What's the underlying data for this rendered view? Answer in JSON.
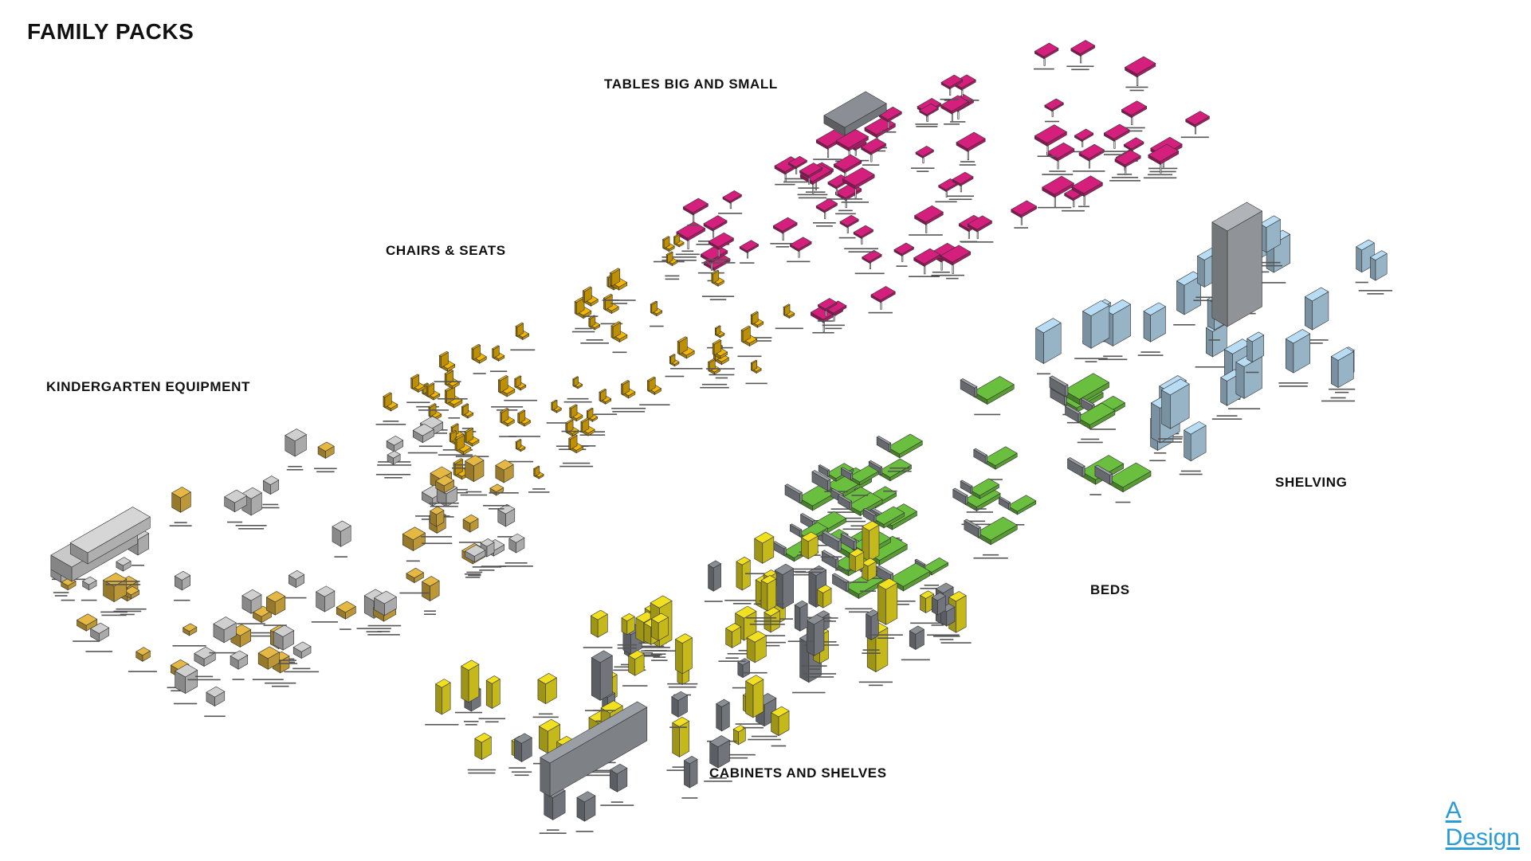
{
  "page": {
    "title": "FAMILY PACKS",
    "sections": {
      "tables": "TABLES BIG AND SMALL",
      "chairs": "CHAIRS & SEATS",
      "kindergarten": "KINDERGARTEN EQUIPMENT",
      "shelving": "SHELVING",
      "beds": "BEDS",
      "cabinets": "CABINETS AND SHELVES"
    },
    "logo": {
      "line1": "A",
      "line2": "Design"
    }
  },
  "colors": {
    "tables": "#d41f7c",
    "chairs": "#f2b705",
    "kindergarten": "#e5b843",
    "beds": "#6bbf3e",
    "shelving": "#b8dcf3",
    "cabinets": "#f0e020",
    "neutral": "#8a8f96",
    "line": "#333333"
  },
  "icons": {
    "tables": "desk-icon",
    "chairs": "chair-icon",
    "kindergarten": "toy-icon",
    "beds": "bed-icon",
    "shelving": "rack-icon",
    "cabinets": "cabinet-icon"
  }
}
